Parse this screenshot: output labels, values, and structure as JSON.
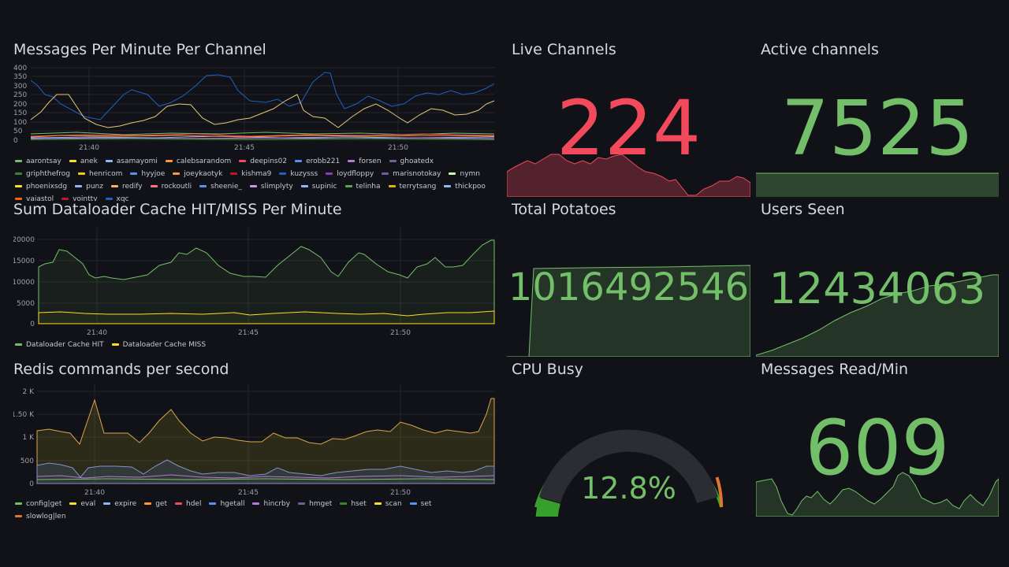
{
  "colors": {
    "green": "#73bf69",
    "red": "#f2495c",
    "orange": "#ff7f0e",
    "yellow": "#fade2a",
    "blue": "#5794f2",
    "bg": "#111217"
  },
  "panels": {
    "messages_per_minute": {
      "title": "Messages Per Minute Per Channel",
      "yticks": [
        "400",
        "350",
        "300",
        "250",
        "200",
        "150",
        "100",
        "50",
        "0"
      ],
      "xticks": [
        "21:40",
        "21:45",
        "21:50"
      ],
      "legend": [
        {
          "name": "aarontsay",
          "color": "#73bf69"
        },
        {
          "name": "anek",
          "color": "#fade2a"
        },
        {
          "name": "asamayomi",
          "color": "#8ab8ff"
        },
        {
          "name": "calebsarandom",
          "color": "#ff9830"
        },
        {
          "name": "deepins02",
          "color": "#f2495c"
        },
        {
          "name": "erobb221",
          "color": "#5794f2"
        },
        {
          "name": "forsen",
          "color": "#b877d9"
        },
        {
          "name": "ghoatedx",
          "color": "#705da0"
        },
        {
          "name": "griphthefrog",
          "color": "#37872d"
        },
        {
          "name": "henricom",
          "color": "#f2cc0c"
        },
        {
          "name": "hyyjoe",
          "color": "#5794f2"
        },
        {
          "name": "joeykaotyk",
          "color": "#ff9830"
        },
        {
          "name": "kishma9",
          "color": "#c4162a"
        },
        {
          "name": "kuzysss",
          "color": "#1f60c4"
        },
        {
          "name": "loydfloppy",
          "color": "#8f3bb8"
        },
        {
          "name": "marisnotokay",
          "color": "#705da0"
        },
        {
          "name": "nymn",
          "color": "#ccf7a5"
        },
        {
          "name": "phoenixsdg",
          "color": "#fade2a"
        },
        {
          "name": "punz",
          "color": "#8ab8ff"
        },
        {
          "name": "redify",
          "color": "#ffb357"
        },
        {
          "name": "rockoutli",
          "color": "#ff7383"
        },
        {
          "name": "sheenie_",
          "color": "#5794f2"
        },
        {
          "name": "slimplyty",
          "color": "#ca95e5"
        },
        {
          "name": "supinic",
          "color": "#8ab8ff"
        },
        {
          "name": "telinha",
          "color": "#56a64b"
        },
        {
          "name": "terrytsang",
          "color": "#e0b400"
        },
        {
          "name": "thickpoo",
          "color": "#8ab8ff"
        },
        {
          "name": "vaiastol",
          "color": "#fa6400"
        },
        {
          "name": "vointtv",
          "color": "#c4162a"
        },
        {
          "name": "xqc",
          "color": "#1f60c4"
        }
      ]
    },
    "dataloader": {
      "title": "Sum Dataloader Cache HIT/MISS Per Minute",
      "yticks": [
        "20000",
        "15000",
        "10000",
        "5000",
        "0"
      ],
      "xticks": [
        "21:40",
        "21:45",
        "21:50"
      ],
      "legend": [
        {
          "name": "Dataloader Cache HIT",
          "color": "#73bf69"
        },
        {
          "name": "Dataloader Cache MISS",
          "color": "#fade2a"
        }
      ]
    },
    "redis": {
      "title": "Redis commands per second",
      "yticks": [
        "2 K",
        "1.50 K",
        "1 K",
        "500",
        "0"
      ],
      "xticks": [
        "21:40",
        "21:45",
        "21:50"
      ],
      "legend": [
        {
          "name": "config|get",
          "color": "#73bf69"
        },
        {
          "name": "eval",
          "color": "#fade2a"
        },
        {
          "name": "expire",
          "color": "#8ab8ff"
        },
        {
          "name": "get",
          "color": "#ff9830"
        },
        {
          "name": "hdel",
          "color": "#f2495c"
        },
        {
          "name": "hgetall",
          "color": "#5794f2"
        },
        {
          "name": "hincrby",
          "color": "#b877d9"
        },
        {
          "name": "hmget",
          "color": "#705da0"
        },
        {
          "name": "hset",
          "color": "#37872d"
        },
        {
          "name": "scan",
          "color": "#fade2a"
        },
        {
          "name": "set",
          "color": "#5794f2"
        },
        {
          "name": "slowlog|len",
          "color": "#e0752d"
        }
      ]
    },
    "live_channels": {
      "title": "Live Channels",
      "value": "224",
      "color": "#f2495c"
    },
    "active_channels": {
      "title": "Active channels",
      "value": "7525",
      "color": "#73bf69"
    },
    "total_potatoes": {
      "title": "Total Potatoes",
      "value": "1016492546",
      "color": "#73bf69"
    },
    "users_seen": {
      "title": "Users Seen",
      "value": "12434063",
      "color": "#73bf69"
    },
    "cpu_busy": {
      "title": "CPU Busy",
      "value": "12.8%",
      "percent": 12.8,
      "color": "#73bf69"
    },
    "messages_read": {
      "title": "Messages Read/Min",
      "value": "609",
      "color": "#73bf69"
    }
  }
}
